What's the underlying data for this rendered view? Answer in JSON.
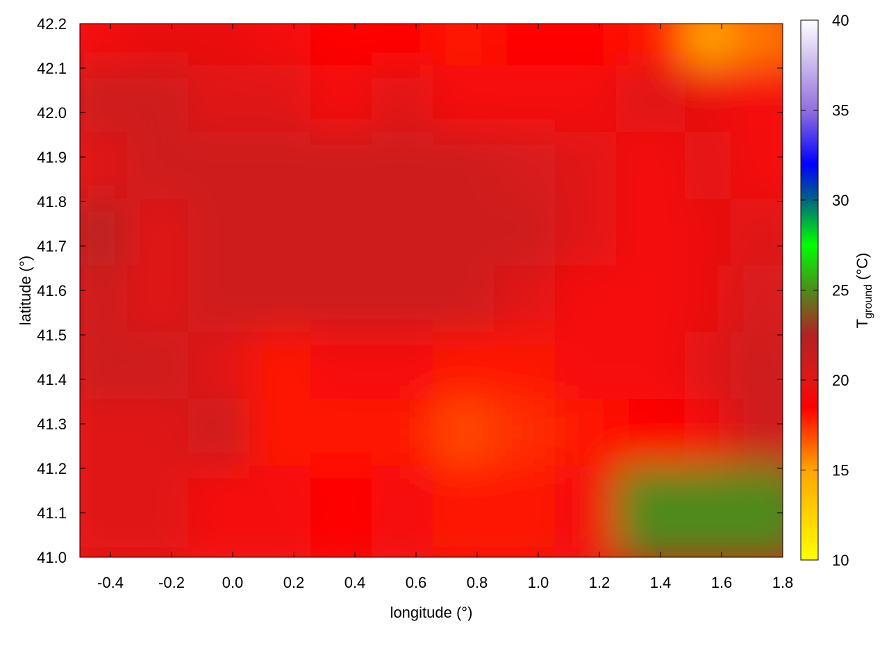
{
  "chart_data": {
    "type": "heatmap",
    "title": "",
    "xlabel": "longitude (°)",
    "ylabel": "latitude (°)",
    "xlim": [
      -0.5,
      1.8
    ],
    "ylim": [
      41.0,
      42.2
    ],
    "x_ticks": [
      "-0.4",
      "-0.2",
      "0.0",
      "0.2",
      "0.4",
      "0.6",
      "0.8",
      "1.0",
      "1.2",
      "1.4",
      "1.6",
      "1.8"
    ],
    "y_ticks": [
      "41.0",
      "41.1",
      "41.2",
      "41.3",
      "41.4",
      "41.5",
      "41.6",
      "41.7",
      "41.8",
      "41.9",
      "42.0",
      "42.1",
      "42.2"
    ],
    "colorbar": {
      "label_main": "T",
      "label_sub": "ground",
      "label_unit": " (°C)",
      "range": [
        10,
        40
      ],
      "ticks": [
        "10",
        "15",
        "20",
        "25",
        "30",
        "35",
        "40"
      ],
      "stops": [
        {
          "value": 10,
          "color": "#ffff00"
        },
        {
          "value": 15,
          "color": "#ffa500"
        },
        {
          "value": 18.5,
          "color": "#ff0000"
        },
        {
          "value": 20,
          "color": "#e01818"
        },
        {
          "value": 22.5,
          "color": "#b22222"
        },
        {
          "value": 25,
          "color": "#4f8a1e"
        },
        {
          "value": 27.5,
          "color": "#00ff00"
        },
        {
          "value": 30,
          "color": "#006680"
        },
        {
          "value": 32,
          "color": "#0000ff"
        },
        {
          "value": 35,
          "color": "#9370db"
        },
        {
          "value": 40,
          "color": "#ffffff"
        }
      ]
    },
    "grid": {
      "lon": [
        -0.4,
        -0.2,
        0.0,
        0.2,
        0.4,
        0.6,
        0.8,
        1.0,
        1.2,
        1.4,
        1.6,
        1.75
      ],
      "lat": [
        42.15,
        42.0,
        41.85,
        41.7,
        41.55,
        41.4,
        41.25,
        41.1
      ],
      "values": [
        [
          19,
          19.5,
          19.5,
          19,
          18.5,
          18.5,
          18,
          18.5,
          18.5,
          18,
          15,
          16
        ],
        [
          21,
          21,
          20,
          20,
          19,
          20,
          19,
          19,
          19,
          20,
          19.5,
          19
        ],
        [
          20,
          21,
          21,
          21,
          21,
          21,
          21,
          20.5,
          20,
          19,
          20,
          19
        ],
        [
          22,
          20,
          21,
          21,
          21,
          21,
          21,
          21,
          20,
          19,
          19.5,
          20
        ],
        [
          21,
          20,
          21,
          21,
          21,
          21,
          21,
          20,
          19,
          19,
          19.5,
          20.5
        ],
        [
          21,
          21,
          20,
          18,
          19,
          19,
          18,
          18,
          19,
          19,
          20,
          21
        ],
        [
          20,
          20,
          21,
          18,
          18,
          18,
          17,
          17.5,
          18,
          18.5,
          19,
          21
        ],
        [
          20,
          20,
          19,
          19,
          18.5,
          19,
          18,
          18,
          19,
          25,
          25,
          25
        ]
      ]
    }
  }
}
